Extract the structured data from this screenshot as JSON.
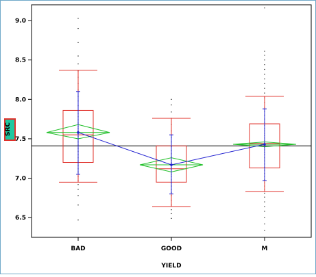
{
  "chart_data": {
    "type": "boxplot",
    "title": "",
    "xlabel": "YIELD",
    "ylabel": "SRC",
    "ylim": [
      6.25,
      9.2
    ],
    "yticks": [
      "6.5",
      "7.0",
      "7.5",
      "8.0",
      "8.5",
      "9.0"
    ],
    "ytick_values": [
      6.5,
      7.0,
      7.5,
      8.0,
      8.5,
      9.0
    ],
    "categories": [
      "BAD",
      "GOOD",
      "M"
    ],
    "grand_mean": 7.41,
    "colors": {
      "box": "#e0302a",
      "diamond": "#22c02a",
      "mean_line": "#2020d0",
      "points": "#000000",
      "axis": "#000000",
      "marker_fill": "#1ec8a0",
      "marker_border": "#e0302a",
      "frame": "#6fa8c8"
    },
    "groups": [
      {
        "name": "BAD",
        "q1": 7.2,
        "median": 7.55,
        "q3": 7.86,
        "whisker_low": 6.95,
        "whisker_high": 8.37,
        "mean": 7.58,
        "ci_low": 7.5,
        "ci_high": 7.68,
        "std_low": 7.05,
        "std_high": 8.1,
        "points": [
          6.47,
          6.66,
          6.78,
          6.86,
          6.92,
          6.97,
          7.02,
          7.08,
          7.12,
          7.16,
          7.22,
          7.26,
          7.3,
          7.34,
          7.38,
          7.42,
          7.46,
          7.5,
          7.53,
          7.56,
          7.6,
          7.63,
          7.66,
          7.7,
          7.74,
          7.78,
          7.82,
          7.86,
          7.92,
          7.98,
          8.04,
          8.12,
          8.2,
          8.28,
          8.36,
          8.45,
          8.55,
          8.72,
          8.9,
          9.03
        ]
      },
      {
        "name": "GOOD",
        "q1": 6.95,
        "median": 7.12,
        "q3": 7.41,
        "whisker_low": 6.64,
        "whisker_high": 7.76,
        "mean": 7.17,
        "ci_low": 7.08,
        "ci_high": 7.26,
        "std_low": 6.8,
        "std_high": 7.55,
        "points": [
          6.49,
          6.55,
          6.6,
          6.66,
          6.72,
          6.78,
          6.82,
          6.86,
          6.9,
          6.94,
          6.98,
          7.02,
          7.05,
          7.08,
          7.11,
          7.14,
          7.17,
          7.2,
          7.23,
          7.27,
          7.31,
          7.35,
          7.4,
          7.46,
          7.52,
          7.6,
          7.68,
          7.76,
          7.84,
          7.93,
          8.0
        ]
      },
      {
        "name": "M",
        "q1": 7.13,
        "median": 7.44,
        "q3": 7.69,
        "whisker_low": 6.83,
        "whisker_high": 8.04,
        "mean": 7.43,
        "ci_low": 7.4,
        "ci_high": 7.46,
        "std_low": 6.97,
        "std_high": 7.88,
        "points": [
          6.34,
          6.42,
          6.5,
          6.58,
          6.64,
          6.7,
          6.76,
          6.81,
          6.86,
          6.9,
          6.94,
          6.98,
          7.02,
          7.06,
          7.1,
          7.14,
          7.18,
          7.22,
          7.26,
          7.3,
          7.33,
          7.36,
          7.39,
          7.42,
          7.45,
          7.48,
          7.51,
          7.54,
          7.57,
          7.6,
          7.63,
          7.67,
          7.71,
          7.75,
          7.8,
          7.85,
          7.9,
          7.96,
          8.02,
          8.08,
          8.14,
          8.2,
          8.26,
          8.32,
          8.38,
          8.44,
          8.5,
          8.56,
          8.61,
          9.16
        ]
      }
    ]
  }
}
